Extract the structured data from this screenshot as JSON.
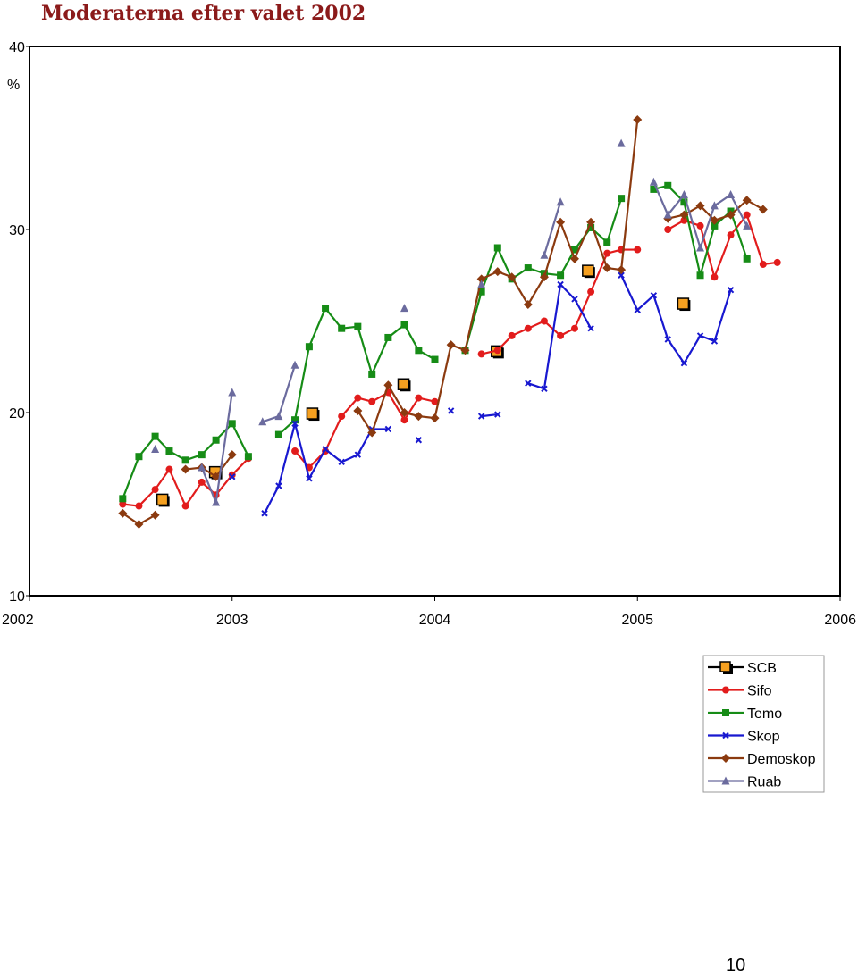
{
  "page_number": "10",
  "chart_data": {
    "type": "line",
    "title": "Moderaterna efter valet 2002",
    "ylabel": "%",
    "xlabel": "",
    "xlim": [
      2002,
      2006
    ],
    "ylim": [
      10,
      40
    ],
    "x_ticks": [
      "2002",
      "2003",
      "2004",
      "2005",
      "2006"
    ],
    "y_ticks": [
      "10",
      "20",
      "30",
      "40"
    ],
    "grid": false,
    "legend_placement": "bottom-right",
    "series": [
      {
        "name": "SCB",
        "color": "#000000",
        "fill": "#f5a020",
        "marker": "square-big",
        "connect": false,
        "points": [
          [
            2002.66,
            15.2
          ],
          [
            2002.92,
            16.7
          ],
          [
            2003.4,
            19.9
          ],
          [
            2003.85,
            21.5
          ],
          [
            2004.31,
            23.3
          ],
          [
            2004.76,
            27.7
          ],
          [
            2005.23,
            25.9
          ]
        ]
      },
      {
        "name": "Sifo",
        "color": "#e21c1c",
        "marker": "circle",
        "connect": true,
        "points": [
          [
            2002.46,
            15.0
          ],
          [
            2002.54,
            14.9
          ],
          [
            2002.62,
            15.8
          ],
          [
            2002.69,
            16.9
          ],
          [
            2002.77,
            14.9
          ],
          [
            2002.85,
            16.2
          ],
          [
            2002.92,
            15.5
          ],
          [
            2003.0,
            16.6
          ],
          [
            2003.08,
            17.5
          ],
          null,
          [
            2003.31,
            17.9
          ],
          [
            2003.38,
            17.0
          ],
          [
            2003.46,
            17.9
          ],
          [
            2003.54,
            19.8
          ],
          [
            2003.62,
            20.8
          ],
          [
            2003.69,
            20.6
          ],
          [
            2003.77,
            21.1
          ],
          [
            2003.85,
            19.6
          ],
          [
            2003.92,
            20.8
          ],
          [
            2004.0,
            20.6
          ],
          null,
          [
            2004.23,
            23.2
          ],
          [
            2004.31,
            23.4
          ],
          [
            2004.38,
            24.2
          ],
          [
            2004.46,
            24.6
          ],
          [
            2004.54,
            25.0
          ],
          [
            2004.62,
            24.2
          ],
          [
            2004.69,
            24.6
          ],
          [
            2004.77,
            26.6
          ],
          [
            2004.85,
            28.7
          ],
          [
            2004.92,
            28.9
          ],
          [
            2005.0,
            28.9
          ],
          null,
          [
            2005.15,
            30.0
          ],
          [
            2005.23,
            30.5
          ],
          [
            2005.31,
            30.2
          ],
          [
            2005.38,
            27.4
          ],
          [
            2005.46,
            29.7
          ],
          [
            2005.54,
            30.8
          ],
          [
            2005.62,
            28.1
          ],
          [
            2005.69,
            28.2
          ]
        ]
      },
      {
        "name": "Temo",
        "color": "#168c16",
        "marker": "square",
        "connect": true,
        "points": [
          [
            2002.46,
            15.3
          ],
          [
            2002.54,
            17.6
          ],
          [
            2002.62,
            18.7
          ],
          [
            2002.69,
            17.9
          ],
          [
            2002.77,
            17.4
          ],
          [
            2002.85,
            17.7
          ],
          [
            2002.92,
            18.5
          ],
          [
            2003.0,
            19.4
          ],
          [
            2003.08,
            17.6
          ],
          null,
          [
            2003.23,
            18.8
          ],
          [
            2003.31,
            19.6
          ],
          [
            2003.38,
            23.6
          ],
          [
            2003.46,
            25.7
          ],
          [
            2003.54,
            24.6
          ],
          [
            2003.62,
            24.7
          ],
          [
            2003.69,
            22.1
          ],
          [
            2003.77,
            24.1
          ],
          [
            2003.85,
            24.8
          ],
          [
            2003.92,
            23.4
          ],
          [
            2004.0,
            22.9
          ],
          null,
          [
            2004.15,
            23.4
          ],
          [
            2004.23,
            26.6
          ],
          [
            2004.31,
            29.0
          ],
          [
            2004.38,
            27.3
          ],
          [
            2004.46,
            27.9
          ],
          [
            2004.54,
            27.6
          ],
          [
            2004.62,
            27.5
          ],
          [
            2004.69,
            28.9
          ],
          [
            2004.77,
            30.1
          ],
          [
            2004.85,
            29.3
          ],
          [
            2004.92,
            31.7
          ],
          null,
          [
            2005.08,
            32.2
          ],
          [
            2005.15,
            32.4
          ],
          [
            2005.23,
            31.5
          ],
          [
            2005.31,
            27.5
          ],
          [
            2005.38,
            30.2
          ],
          [
            2005.46,
            31.0
          ],
          [
            2005.54,
            28.4
          ]
        ]
      },
      {
        "name": "Skop",
        "color": "#1818d0",
        "marker": "x",
        "connect": true,
        "points": [
          [
            2003.0,
            16.5
          ],
          null,
          [
            2003.16,
            14.5
          ],
          [
            2003.23,
            16.0
          ],
          [
            2003.31,
            19.4
          ],
          [
            2003.38,
            16.4
          ],
          [
            2003.46,
            18.0
          ],
          [
            2003.54,
            17.3
          ],
          [
            2003.62,
            17.7
          ],
          [
            2003.69,
            19.1
          ],
          [
            2003.77,
            19.1
          ],
          null,
          [
            2003.92,
            18.5
          ],
          null,
          [
            2004.08,
            20.1
          ],
          null,
          [
            2004.23,
            19.8
          ],
          [
            2004.31,
            19.9
          ],
          null,
          [
            2004.46,
            21.6
          ],
          [
            2004.54,
            21.3
          ],
          [
            2004.62,
            27.0
          ],
          [
            2004.69,
            26.2
          ],
          [
            2004.77,
            24.6
          ],
          null,
          [
            2004.92,
            27.5
          ],
          [
            2005.0,
            25.6
          ],
          [
            2005.08,
            26.4
          ],
          [
            2005.15,
            24.0
          ],
          [
            2005.23,
            22.7
          ],
          [
            2005.31,
            24.2
          ],
          [
            2005.38,
            23.9
          ],
          [
            2005.46,
            26.7
          ]
        ]
      },
      {
        "name": "Demoskop",
        "color": "#8b3a0f",
        "marker": "diamond",
        "connect": true,
        "points": [
          [
            2002.46,
            14.5
          ],
          [
            2002.54,
            13.9
          ],
          [
            2002.62,
            14.4
          ],
          null,
          [
            2002.77,
            16.9
          ],
          [
            2002.85,
            17.0
          ],
          [
            2002.92,
            16.5
          ],
          [
            2003.0,
            17.7
          ],
          null,
          [
            2003.62,
            20.1
          ],
          [
            2003.69,
            18.9
          ],
          [
            2003.77,
            21.5
          ],
          [
            2003.85,
            20.0
          ],
          [
            2003.92,
            19.8
          ],
          [
            2004.0,
            19.7
          ],
          [
            2004.08,
            23.7
          ],
          [
            2004.15,
            23.4
          ],
          [
            2004.23,
            27.3
          ],
          [
            2004.31,
            27.7
          ],
          [
            2004.38,
            27.4
          ],
          [
            2004.46,
            25.9
          ],
          [
            2004.54,
            27.4
          ],
          [
            2004.62,
            30.4
          ],
          [
            2004.69,
            28.4
          ],
          [
            2004.77,
            30.4
          ],
          [
            2004.85,
            27.9
          ],
          [
            2004.92,
            27.8
          ],
          [
            2005.0,
            36.0
          ],
          null,
          [
            2005.15,
            30.6
          ],
          [
            2005.23,
            30.8
          ],
          [
            2005.31,
            31.3
          ],
          [
            2005.38,
            30.5
          ],
          [
            2005.46,
            30.8
          ],
          [
            2005.54,
            31.6
          ],
          [
            2005.62,
            31.1
          ]
        ]
      },
      {
        "name": "Ruab",
        "color": "#6b6b9e",
        "marker": "triangle",
        "connect": true,
        "points": [
          [
            2002.62,
            18.0
          ],
          null,
          [
            2002.85,
            17.0
          ],
          [
            2002.92,
            15.1
          ],
          [
            2003.0,
            21.1
          ],
          null,
          [
            2003.15,
            19.5
          ],
          [
            2003.23,
            19.8
          ],
          [
            2003.31,
            22.6
          ],
          null,
          [
            2003.85,
            25.7
          ],
          null,
          [
            2004.23,
            27.0
          ],
          null,
          [
            2004.54,
            28.6
          ],
          [
            2004.62,
            31.5
          ],
          null,
          [
            2004.92,
            34.7
          ],
          null,
          [
            2005.08,
            32.6
          ],
          [
            2005.15,
            30.8
          ],
          [
            2005.23,
            31.9
          ],
          [
            2005.31,
            29.0
          ],
          [
            2005.38,
            31.3
          ],
          [
            2005.46,
            31.9
          ],
          [
            2005.54,
            30.2
          ]
        ]
      }
    ]
  }
}
